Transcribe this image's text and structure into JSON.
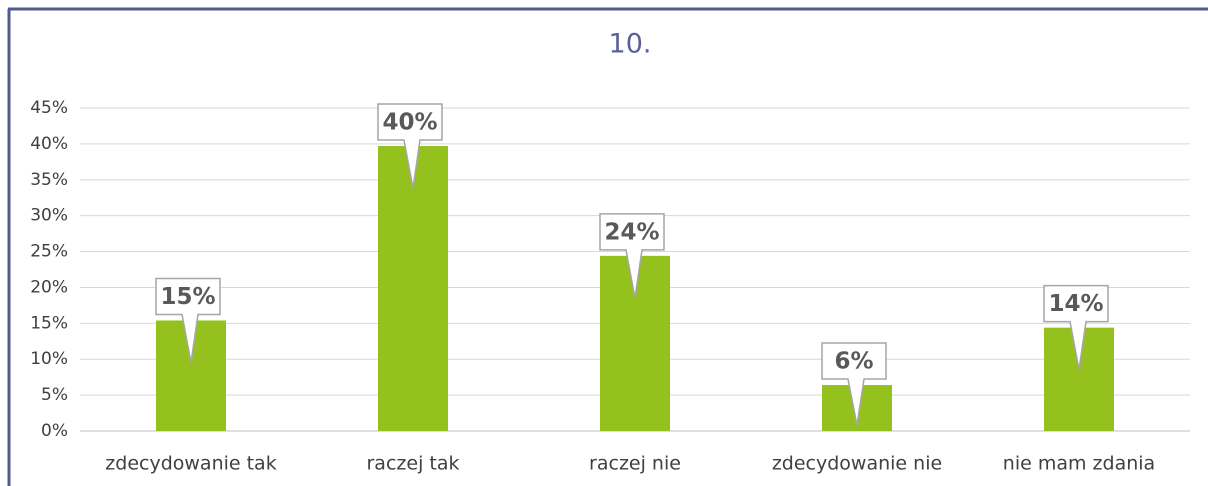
{
  "chart_data": {
    "type": "bar",
    "title": "10.",
    "categories": [
      "zdecydowanie tak",
      "raczej tak",
      "raczej nie",
      "zdecydowanie nie",
      "nie mam zdania"
    ],
    "values": [
      15.4,
      39.7,
      24.4,
      6.4,
      14.4
    ],
    "value_labels": [
      "15%",
      "40%",
      "24%",
      "6%",
      "14%"
    ],
    "color": "#95c11f",
    "ylim": [
      0,
      45
    ],
    "yticks": [
      {
        "value": 0,
        "label": "0%"
      },
      {
        "value": 5,
        "label": "5%"
      },
      {
        "value": 10,
        "label": "10%"
      },
      {
        "value": 15,
        "label": "15%"
      },
      {
        "value": 20,
        "label": "20%"
      },
      {
        "value": 25,
        "label": "25%"
      },
      {
        "value": 30,
        "label": "30%"
      },
      {
        "value": 35,
        "label": "35%"
      },
      {
        "value": 40,
        "label": "40%"
      },
      {
        "value": 45,
        "label": "45%"
      }
    ],
    "grid": true
  }
}
